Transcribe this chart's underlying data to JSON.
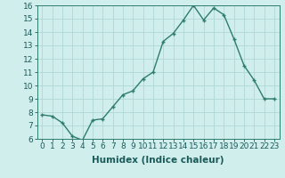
{
  "x": [
    0,
    1,
    2,
    3,
    4,
    5,
    6,
    7,
    8,
    9,
    10,
    11,
    12,
    13,
    14,
    15,
    16,
    17,
    18,
    19,
    20,
    21,
    22,
    23
  ],
  "y": [
    7.8,
    7.7,
    7.2,
    6.2,
    5.9,
    7.4,
    7.5,
    8.4,
    9.3,
    9.6,
    10.5,
    11.0,
    13.3,
    13.9,
    14.9,
    16.0,
    14.9,
    15.8,
    15.3,
    13.5,
    11.5,
    10.4,
    9.0,
    9.0
  ],
  "xlabel": "Humidex (Indice chaleur)",
  "line_color": "#2e7d6e",
  "marker_color": "#2e7d6e",
  "bg_color": "#d0eeec",
  "grid_color": "#b0d8d5",
  "ylim": [
    6,
    16
  ],
  "xlim": [
    -0.5,
    23.5
  ],
  "yticks": [
    6,
    7,
    8,
    9,
    10,
    11,
    12,
    13,
    14,
    15,
    16
  ],
  "xticks": [
    0,
    1,
    2,
    3,
    4,
    5,
    6,
    7,
    8,
    9,
    10,
    11,
    12,
    13,
    14,
    15,
    16,
    17,
    18,
    19,
    20,
    21,
    22,
    23
  ],
  "xtick_labels": [
    "0",
    "1",
    "2",
    "3",
    "4",
    "5",
    "6",
    "7",
    "8",
    "9",
    "10",
    "11",
    "12",
    "13",
    "14",
    "15",
    "16",
    "17",
    "18",
    "19",
    "20",
    "21",
    "22",
    "23"
  ],
  "xlabel_fontsize": 7.5,
  "tick_fontsize": 6.5
}
